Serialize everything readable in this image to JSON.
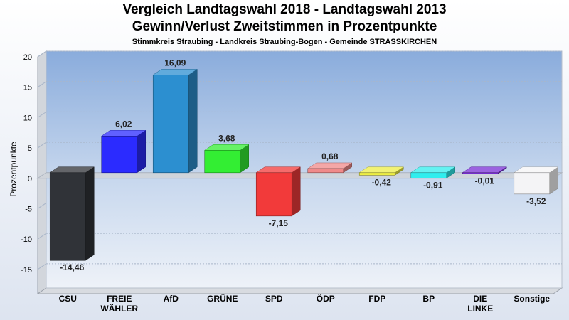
{
  "header": {
    "title": "Vergleich Landtagswahl 2018 - Landtagswahl 2013",
    "subtitle": "Gewinn/Verlust Zweitstimmen in Prozentpunkte",
    "subsubtitle": "Stimmkreis Straubing - Landkreis Straubing-Bogen - Gemeinde STRASSKIRCHEN"
  },
  "chart_data": {
    "type": "bar",
    "title": "Vergleich Landtagswahl 2018 - Landtagswahl 2013",
    "subtitle": "Gewinn/Verlust Zweitstimmen in Prozentpunkte",
    "ylabel": "Prozentpunkte",
    "xlabel": "",
    "ylim": [
      -19,
      20
    ],
    "yticks": [
      20,
      15,
      10,
      5,
      0,
      -5,
      -10,
      -15
    ],
    "grid": true,
    "categories": [
      [
        "CSU"
      ],
      [
        "FREIE",
        "WÄHLER"
      ],
      [
        "AfD"
      ],
      [
        "GRÜNE"
      ],
      [
        "SPD"
      ],
      [
        "ÖDP"
      ],
      [
        "FDP"
      ],
      [
        "BP"
      ],
      [
        "DIE",
        "LINKE"
      ],
      [
        "Sonstige"
      ]
    ],
    "values": [
      -14.46,
      6.02,
      16.09,
      3.68,
      -7.15,
      0.68,
      -0.42,
      -0.91,
      -0.01,
      -3.52
    ],
    "value_labels": [
      "-14,46",
      "6,02",
      "16,09",
      "3,68",
      "-7,15",
      "0,68",
      "-0,42",
      "-0,91",
      "-0,01",
      "-3,52"
    ],
    "colors": [
      "#303338",
      "#2b2bff",
      "#2c8fd0",
      "#33ee33",
      "#f23a3a",
      "#f08a8a",
      "#eeee44",
      "#30eeee",
      "#7a2fd6",
      "#f4f4f6"
    ]
  }
}
